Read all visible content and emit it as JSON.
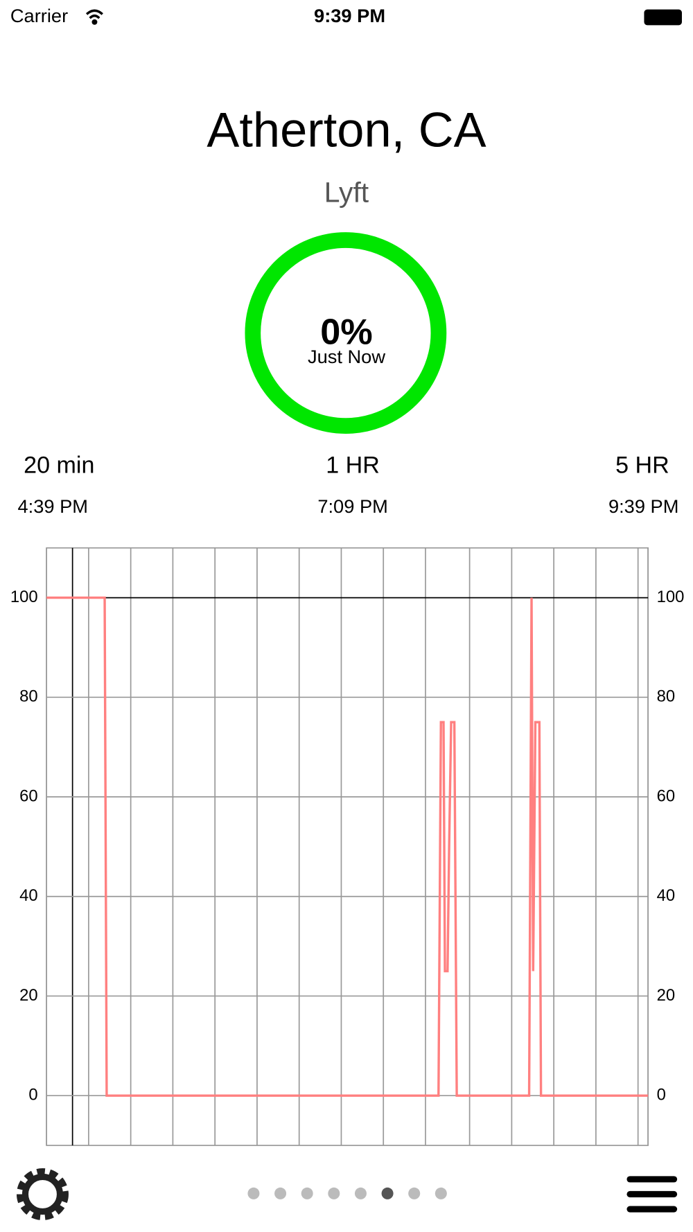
{
  "status": {
    "carrier": "Carrier",
    "time": "9:39 PM"
  },
  "header": {
    "title": "Atherton, CA",
    "subtitle": "Lyft"
  },
  "gauge": {
    "value": "0%",
    "label": "Just Now"
  },
  "ranges": [
    {
      "label": "20 min",
      "time": "4:39 PM"
    },
    {
      "label": "1 HR",
      "time": "7:09 PM"
    },
    {
      "label": "5 HR",
      "time": "9:39 PM"
    }
  ],
  "pager": {
    "count": 8,
    "active": 5
  },
  "chart_data": {
    "type": "line",
    "x": [
      0,
      29,
      30,
      195.5,
      196.7,
      198,
      198.7,
      200,
      200.8,
      201.8,
      203.4,
      204.6,
      240.7,
      241.9,
      242.7,
      243.8,
      245.8,
      246.6,
      300
    ],
    "series": [
      {
        "color": "#ff8080",
        "values": [
          100,
          100,
          0,
          0,
          75,
          75,
          25,
          25,
          50,
          75,
          75,
          0,
          0,
          100,
          25,
          75,
          75,
          0,
          0
        ]
      }
    ],
    "xlim": [
      0,
      300
    ],
    "xticks": [
      0,
      21,
      42,
      63,
      84,
      105,
      126,
      147,
      168,
      189,
      211,
      232,
      253,
      274,
      295,
      300
    ],
    "ylim": [
      -10,
      110
    ],
    "yticks": [
      0,
      20,
      40,
      60,
      80,
      100
    ],
    "grid": true
  }
}
